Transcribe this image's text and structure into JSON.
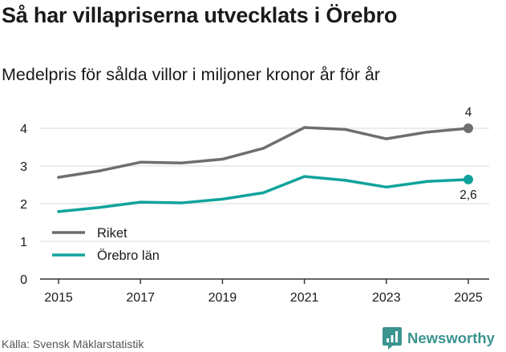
{
  "title": "Så har villapriserna utvecklats i Örebro",
  "subtitle": "Medelpris för sålda villor i miljoner kronor år för år",
  "source": "Källa: Svensk Mäklarstatistik",
  "brand": "Newsworthy",
  "colors": {
    "riket": "#6e6e6e",
    "orebro": "#10a39b",
    "grid": "#d9d9d9",
    "axis": "#333333",
    "brand": "#3a9490"
  },
  "chart_data": {
    "type": "line",
    "x": [
      2015,
      2016,
      2017,
      2018,
      2019,
      2020,
      2021,
      2022,
      2023,
      2024,
      2025
    ],
    "xticks": [
      "2015",
      "2017",
      "2019",
      "2021",
      "2023",
      "2025"
    ],
    "yticks": [
      "0",
      "1",
      "2",
      "3",
      "4"
    ],
    "ylim": [
      0,
      4
    ],
    "grid": true,
    "legend_position": "bottom-left",
    "series": [
      {
        "name": "Riket",
        "values": [
          2.7,
          2.87,
          3.1,
          3.08,
          3.18,
          3.47,
          4.02,
          3.97,
          3.72,
          3.9,
          4.0
        ],
        "end_label": "4"
      },
      {
        "name": "Örebro län",
        "values": [
          1.79,
          1.9,
          2.04,
          2.02,
          2.12,
          2.29,
          2.72,
          2.62,
          2.44,
          2.59,
          2.64
        ],
        "end_label": "2,6"
      }
    ]
  }
}
